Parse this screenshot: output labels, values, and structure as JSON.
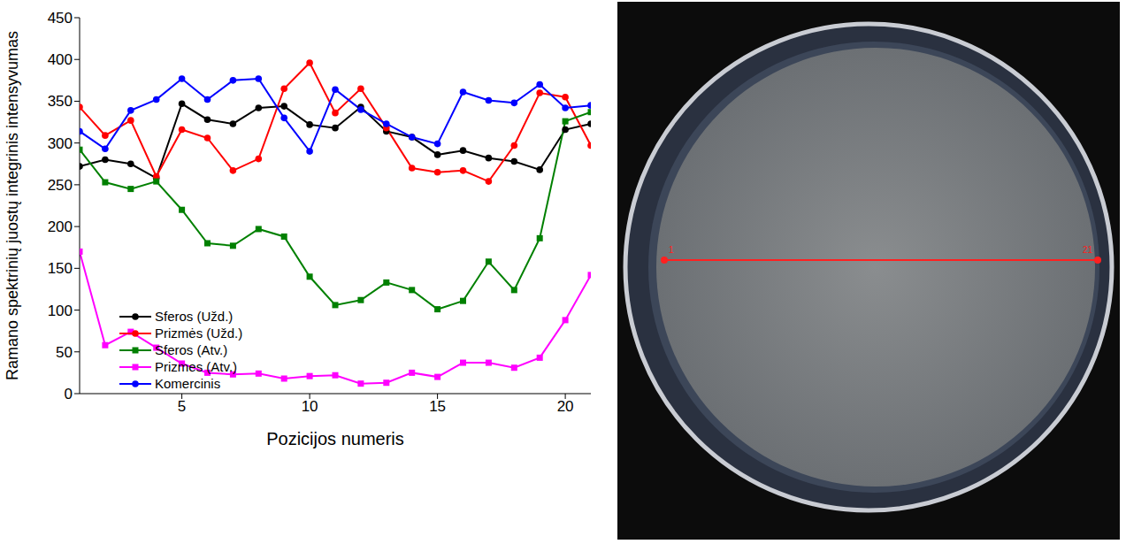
{
  "chart_data": {
    "type": "line",
    "x_label": "Pozicijos numeris",
    "y_label": "Ramano spektrinių juostų integrinis intensyvumas",
    "x": [
      1,
      2,
      3,
      4,
      5,
      6,
      7,
      8,
      9,
      10,
      11,
      12,
      13,
      14,
      15,
      16,
      17,
      18,
      19,
      20,
      21
    ],
    "xlim": [
      1,
      21
    ],
    "xticks": [
      5,
      10,
      15,
      20
    ],
    "ylim": [
      0,
      450
    ],
    "yticks": [
      0,
      50,
      100,
      150,
      200,
      250,
      300,
      350,
      400,
      450
    ],
    "grid": false,
    "legend": "lower left",
    "series": [
      {
        "name": "Sferos (Užd.)",
        "color": "#000000",
        "marker": "circle",
        "values": [
          272,
          280,
          275,
          258,
          347,
          328,
          323,
          342,
          344,
          322,
          318,
          343,
          314,
          307,
          286,
          291,
          282,
          278,
          268,
          316,
          323
        ]
      },
      {
        "name": "Prizmės (Užd.)",
        "color": "#ff0000",
        "marker": "circle",
        "values": [
          343,
          309,
          327,
          260,
          316,
          306,
          267,
          281,
          365,
          396,
          336,
          365,
          318,
          270,
          265,
          267,
          254,
          297,
          360,
          355,
          297
        ]
      },
      {
        "name": "Sferos (Atv.)",
        "color": "#008000",
        "marker": "square",
        "values": [
          292,
          253,
          245,
          254,
          220,
          180,
          177,
          197,
          188,
          140,
          106,
          112,
          133,
          124,
          101,
          111,
          158,
          124,
          186,
          326,
          337
        ]
      },
      {
        "name": "Prizmes (Atv.)",
        "color": "#ff00ff",
        "marker": "square",
        "values": [
          170,
          58,
          74,
          55,
          36,
          25,
          23,
          24,
          18,
          21,
          22,
          12,
          13,
          25,
          20,
          37,
          37,
          31,
          43,
          88,
          142
        ]
      },
      {
        "name": "Komercinis",
        "color": "#0000ff",
        "marker": "circle",
        "values": [
          314,
          293,
          339,
          352,
          377,
          352,
          375,
          377,
          330,
          290,
          364,
          340,
          323,
          307,
          299,
          361,
          351,
          348,
          370,
          342,
          345
        ]
      }
    ]
  },
  "photo": {
    "line_labels": [
      "1",
      "21"
    ]
  }
}
